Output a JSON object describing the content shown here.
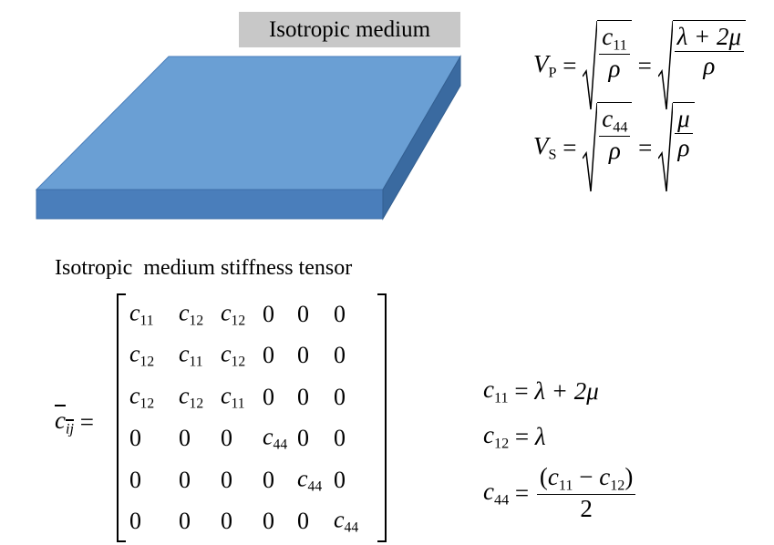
{
  "label": "Isotropic medium",
  "velocity_equations": [
    [
      {
        "symbol": "V",
        "subscript": "P"
      },
      " = ",
      {
        "sqrt": {
          "frac": {
            "num": [
              {
                "symbol": "c",
                "subscript": "11"
              }
            ],
            "den": [
              "ρ"
            ]
          }
        }
      },
      " = ",
      {
        "sqrt": {
          "frac": {
            "num": [
              "λ + 2μ"
            ],
            "den": [
              "ρ"
            ]
          }
        }
      }
    ],
    [
      {
        "symbol": "V",
        "subscript": "S"
      },
      " = ",
      {
        "sqrt": {
          "frac": {
            "num": [
              {
                "symbol": "c",
                "subscript": "44"
              }
            ],
            "den": [
              "ρ"
            ]
          }
        }
      },
      " = ",
      {
        "sqrt": {
          "frac": {
            "num": [
              "μ"
            ],
            "den": [
              "ρ"
            ]
          }
        }
      }
    ]
  ],
  "tensor": {
    "title": "Isotropic  medium stiffness tensor",
    "lhs": [
      {
        "symbol": "c",
        "subscript": "ij",
        "overline": true
      },
      " ="
    ],
    "matrix": [
      [
        {
          "symbol": "c",
          "subscript": "11"
        },
        {
          "symbol": "c",
          "subscript": "12"
        },
        {
          "symbol": "c",
          "subscript": "12"
        },
        "0",
        "0",
        "0"
      ],
      [
        {
          "symbol": "c",
          "subscript": "12"
        },
        {
          "symbol": "c",
          "subscript": "11"
        },
        {
          "symbol": "c",
          "subscript": "12"
        },
        "0",
        "0",
        "0"
      ],
      [
        {
          "symbol": "c",
          "subscript": "12"
        },
        {
          "symbol": "c",
          "subscript": "12"
        },
        {
          "symbol": "c",
          "subscript": "11"
        },
        "0",
        "0",
        "0"
      ],
      [
        "0",
        "0",
        "0",
        {
          "symbol": "c",
          "subscript": "44"
        },
        "0",
        "0"
      ],
      [
        "0",
        "0",
        "0",
        "0",
        {
          "symbol": "c",
          "subscript": "44"
        },
        "0"
      ],
      [
        "0",
        "0",
        "0",
        "0",
        "0",
        {
          "symbol": "c",
          "subscript": "44"
        }
      ]
    ]
  },
  "relations": [
    [
      {
        "symbol": "c",
        "subscript": "11"
      },
      " = ",
      "λ + 2μ"
    ],
    [
      {
        "symbol": "c",
        "subscript": "12"
      },
      " = ",
      "λ"
    ],
    [
      {
        "symbol": "c",
        "subscript": "44"
      },
      " = ",
      {
        "frac": {
          "num": [
            "(",
            {
              "symbol": "c",
              "subscript": "11"
            },
            " − ",
            {
              "symbol": "c",
              "subscript": "12"
            },
            ")"
          ],
          "den": [
            "2"
          ]
        }
      }
    ]
  ]
}
